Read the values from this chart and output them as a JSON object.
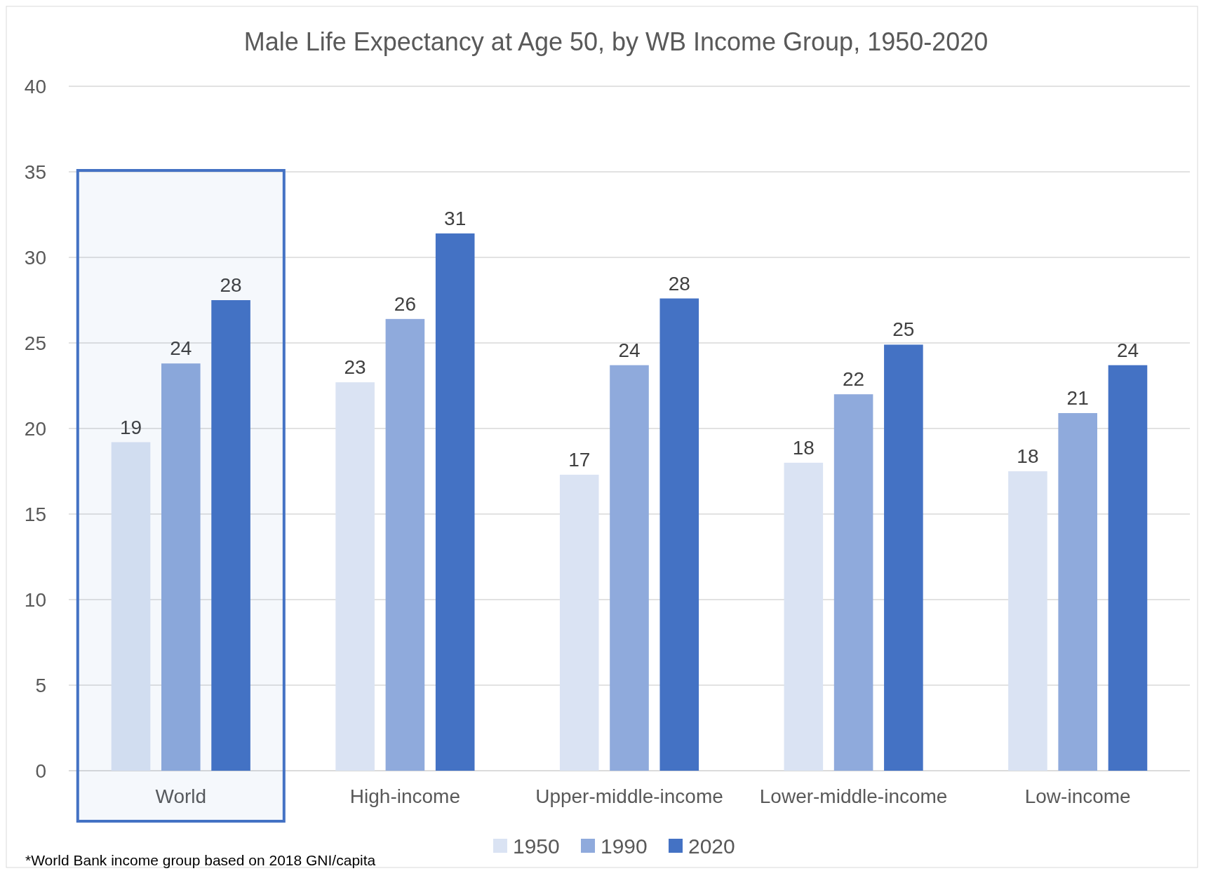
{
  "chart_data": {
    "type": "bar",
    "title": "Male Life Expectancy at Age 50, by WB Income Group, 1950-2020",
    "categories": [
      "World",
      "High-income",
      "Upper-middle-income",
      "Lower-middle-income",
      "Low-income"
    ],
    "series": [
      {
        "name": "1950",
        "color": "#dae3f3",
        "values": [
          19.2,
          22.7,
          17.3,
          18.0,
          17.5
        ],
        "value_labels": [
          "19",
          "23",
          "17",
          "18",
          "18"
        ]
      },
      {
        "name": "1990",
        "color": "#8faadc",
        "values": [
          23.8,
          26.4,
          23.7,
          22.0,
          20.9
        ],
        "value_labels": [
          "24",
          "26",
          "24",
          "22",
          "21"
        ]
      },
      {
        "name": "2020",
        "color": "#4472c4",
        "values": [
          27.5,
          31.4,
          27.6,
          24.9,
          23.7
        ],
        "value_labels": [
          "28",
          "31",
          "28",
          "25",
          "24"
        ]
      }
    ],
    "ylim": [
      0,
      40
    ],
    "yticks": [
      0,
      5,
      10,
      15,
      20,
      25,
      30,
      35,
      40
    ],
    "grid": "y",
    "legend": "bottom",
    "bands": [
      {
        "axis": "x",
        "from": "World",
        "to": "World",
        "color": "#4472c4"
      }
    ],
    "annotations": [
      "*World Bank income group based on 2018 GNI/capita"
    ]
  }
}
